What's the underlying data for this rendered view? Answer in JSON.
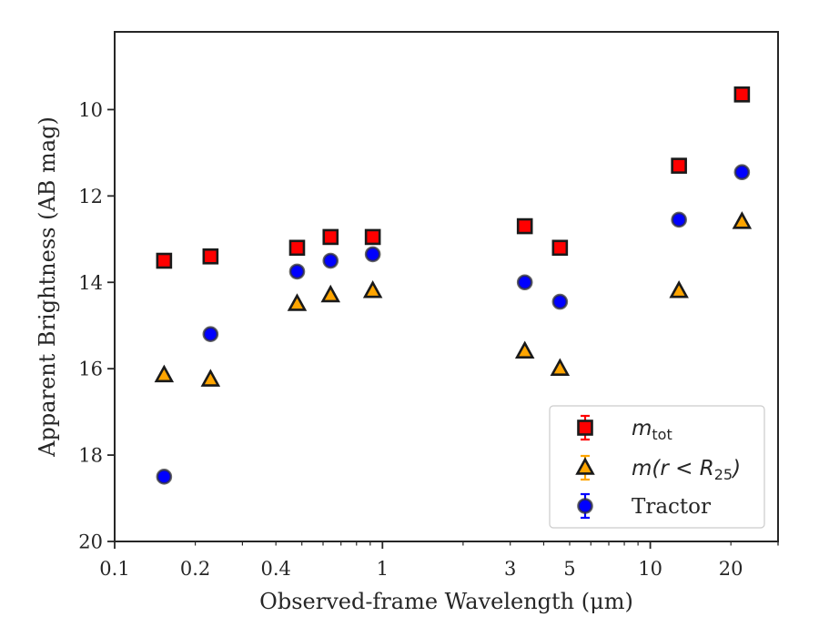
{
  "chart_data": {
    "type": "scatter",
    "xlabel": "Observed-frame Wavelength (μm)",
    "ylabel": "Apparent Brightness (AB mag)",
    "x_scale": "log",
    "y_inverted": true,
    "xlim": [
      0.1,
      30
    ],
    "ylim": [
      20,
      8.2
    ],
    "x_ticks": [
      {
        "value": 0.1,
        "label": "0.1"
      },
      {
        "value": 0.2,
        "label": "0.2"
      },
      {
        "value": 0.4,
        "label": "0.4"
      },
      {
        "value": 1,
        "label": "1"
      },
      {
        "value": 3,
        "label": "3"
      },
      {
        "value": 5,
        "label": "5"
      },
      {
        "value": 10,
        "label": "10"
      },
      {
        "value": 20,
        "label": "20"
      }
    ],
    "y_ticks": [
      {
        "value": 10,
        "label": "10"
      },
      {
        "value": 12,
        "label": "12"
      },
      {
        "value": 14,
        "label": "14"
      },
      {
        "value": 16,
        "label": "16"
      },
      {
        "value": 18,
        "label": "18"
      },
      {
        "value": 20,
        "label": "20"
      }
    ],
    "grid": false,
    "legend_position": "lower-right",
    "series": [
      {
        "name": "m_tot",
        "legend_main": "m",
        "legend_sub": "tot",
        "marker": "square",
        "color": "#ff0000",
        "error_color": "#ff0000",
        "x": [
          0.153,
          0.228,
          0.48,
          0.64,
          0.92,
          3.4,
          4.6,
          12.8,
          22.0
        ],
        "y": [
          13.5,
          13.4,
          13.2,
          12.95,
          12.95,
          12.7,
          13.2,
          11.3,
          9.65
        ]
      },
      {
        "name": "m(r < R_25)",
        "legend_main": "m(r < R",
        "legend_sub": "25",
        "legend_tail": ")",
        "marker": "triangle",
        "color": "#ffa500",
        "error_color": "#ffa500",
        "x": [
          0.153,
          0.228,
          0.48,
          0.64,
          0.92,
          3.4,
          4.6,
          12.8,
          22.0
        ],
        "y": [
          16.15,
          16.25,
          14.5,
          14.3,
          14.2,
          15.6,
          16.0,
          14.2,
          12.6
        ]
      },
      {
        "name": "Tractor",
        "legend_main": "Tractor",
        "marker": "circle",
        "color": "#0000ff",
        "error_color": "#0000ff",
        "x": [
          0.153,
          0.228,
          0.48,
          0.64,
          0.92,
          3.4,
          4.6,
          12.8,
          22.0
        ],
        "y": [
          18.5,
          15.2,
          13.75,
          13.5,
          13.35,
          14.0,
          14.45,
          12.55,
          11.45
        ]
      }
    ]
  }
}
